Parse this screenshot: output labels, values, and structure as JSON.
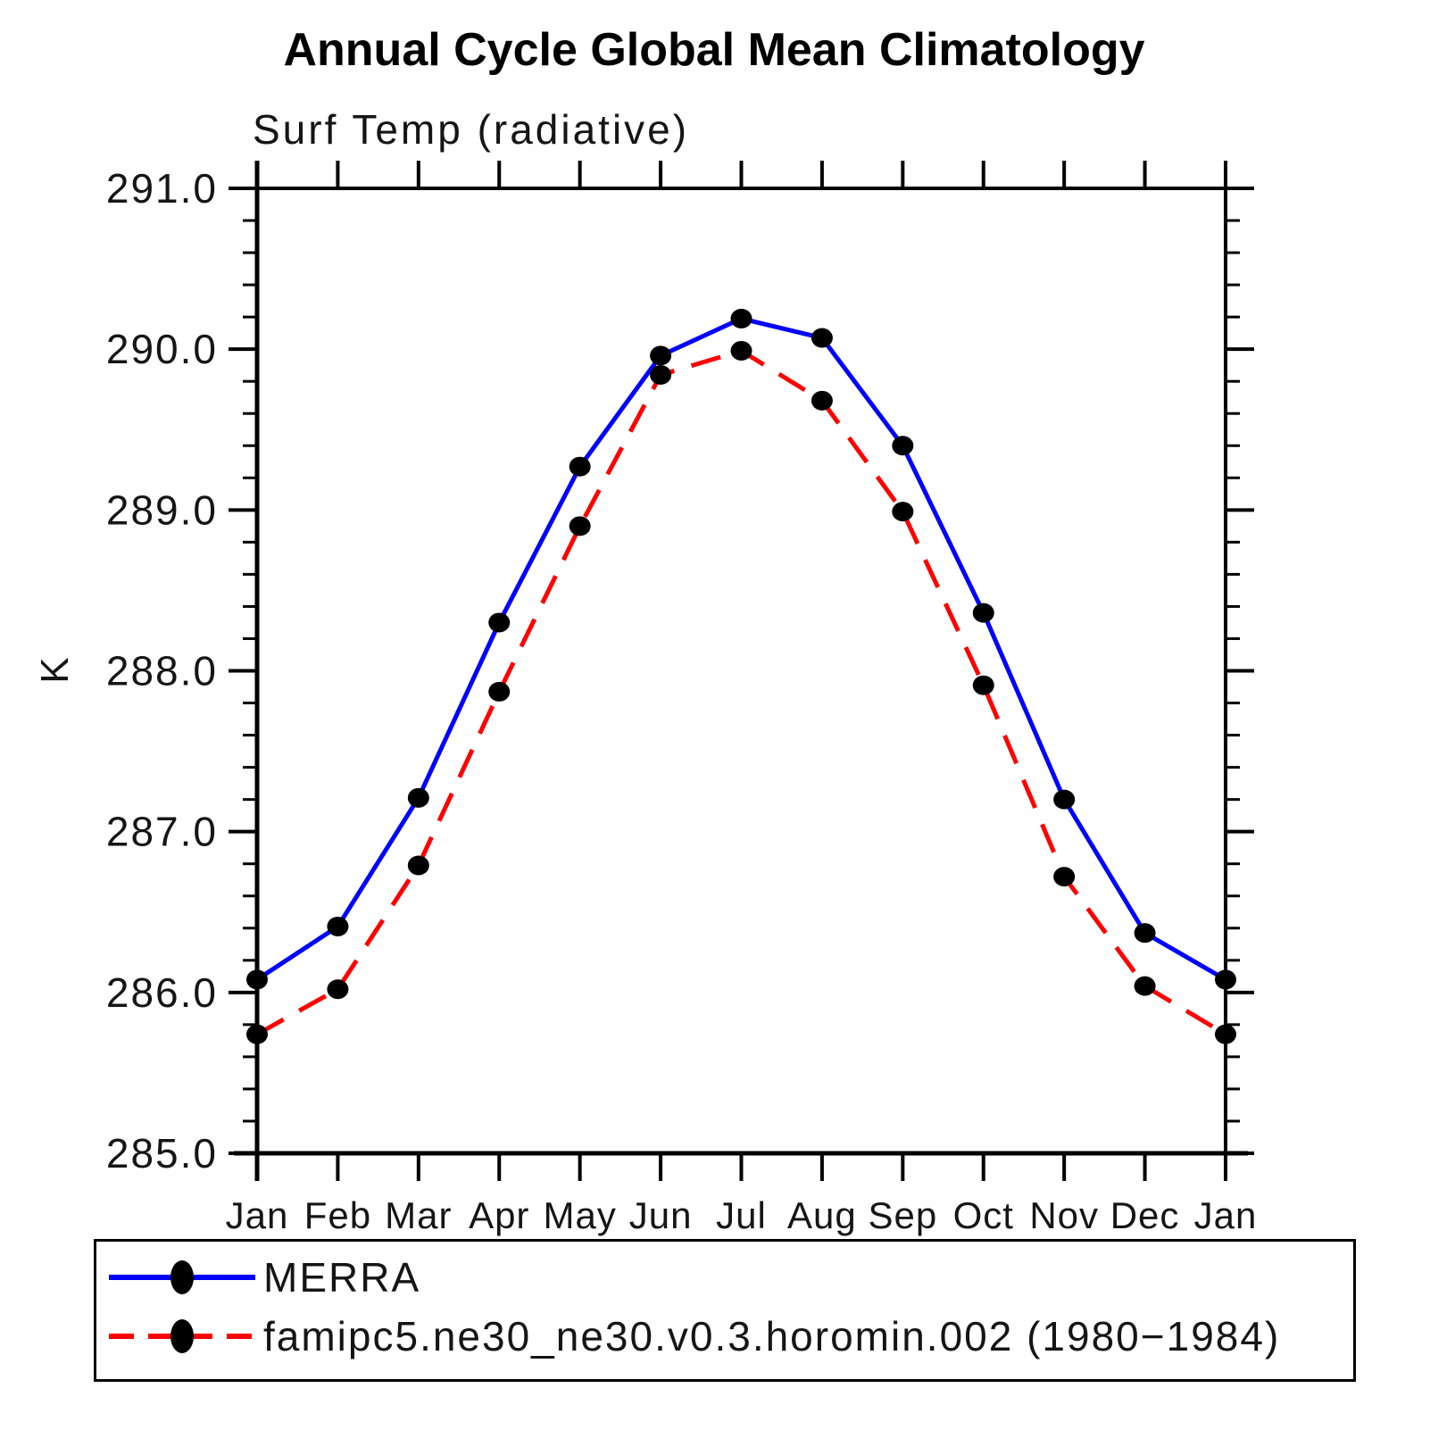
{
  "title": "Annual Cycle Global Mean Climatology",
  "subtitle": "Surf Temp (radiative)",
  "colors": {
    "axis": "#000000",
    "marker": "#000000",
    "merra": "#0000ff",
    "model": "#ff0000"
  },
  "chart_data": {
    "type": "line",
    "title": "Annual Cycle Global Mean Climatology",
    "subtitle": "Surf Temp (radiative)",
    "xlabel": "",
    "ylabel": "K",
    "ylim": [
      285.0,
      291.0
    ],
    "ytick_interval": 1.0,
    "yminor_interval": 0.2,
    "y_tick_labels": [
      "285.0",
      "286.0",
      "287.0",
      "288.0",
      "289.0",
      "290.0",
      "291.0"
    ],
    "categories": [
      "Jan",
      "Feb",
      "Mar",
      "Apr",
      "May",
      "Jun",
      "Jul",
      "Aug",
      "Sep",
      "Oct",
      "Nov",
      "Dec",
      "Jan"
    ],
    "grid": false,
    "legend_position": "bottom",
    "series": [
      {
        "name": "MERRA",
        "color": "#0000ff",
        "style": "solid",
        "marker": "filled-circle",
        "marker_color": "#000000",
        "values": [
          286.08,
          286.41,
          287.21,
          288.3,
          289.27,
          289.96,
          290.19,
          290.07,
          289.4,
          288.36,
          287.2,
          286.37,
          286.08
        ]
      },
      {
        "name": "famipc5.ne30_ne30.v0.3.horomin.002 (1980−1984)",
        "color": "#ff0000",
        "style": "dashed",
        "marker": "filled-circle",
        "marker_color": "#000000",
        "values": [
          285.74,
          286.02,
          286.79,
          287.87,
          288.9,
          289.84,
          289.99,
          289.68,
          288.99,
          287.91,
          286.72,
          286.04,
          285.74
        ]
      }
    ]
  }
}
